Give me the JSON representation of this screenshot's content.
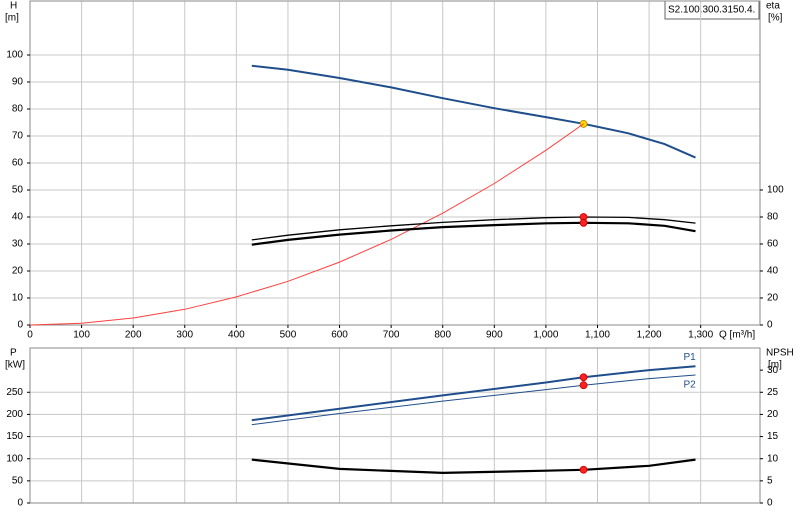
{
  "model_label": "S2.100.300.3150.4.",
  "chart_data": [
    {
      "type": "line",
      "y_label": "H",
      "y_unit": "[m]",
      "y2_label": "eta",
      "y2_unit": "[%]",
      "x_label": "Q [m³/h]",
      "xlim": [
        0,
        1415
      ],
      "ylim": [
        0,
        120
      ],
      "y2lim": [
        0,
        240
      ],
      "xticks": [
        0,
        100,
        200,
        300,
        400,
        500,
        600,
        700,
        800,
        900,
        {
          "value": 1000,
          "label": "1,000"
        },
        {
          "value": 1100,
          "label": "1,100"
        },
        {
          "value": 1200,
          "label": "1,200"
        },
        {
          "value": 1300,
          "label": "1,300"
        }
      ],
      "yticks": [
        0,
        10,
        20,
        30,
        40,
        50,
        60,
        70,
        80,
        90,
        100
      ],
      "y2ticks": [
        0,
        20,
        40,
        60,
        80,
        100
      ],
      "grid": true,
      "operating_x": 1073,
      "series": [
        {
          "color": "#1f4e8c",
          "line_width": 2,
          "axis": "y",
          "marker_color": "#ffd700",
          "x": [
            430,
            500,
            600,
            700,
            800,
            900,
            1000,
            1073,
            1160,
            1230,
            1290
          ],
          "values": [
            96,
            94.5,
            91.5,
            88,
            84,
            80.3,
            77,
            74.5,
            71,
            67,
            62
          ]
        },
        {
          "color": "#ff4040",
          "line_width": 1,
          "axis": "y",
          "x": [
            0,
            100,
            200,
            300,
            400,
            500,
            600,
            700,
            800,
            900,
            1000,
            1073
          ],
          "values": [
            0,
            0.65,
            2.6,
            5.8,
            10.4,
            16.2,
            23.3,
            31.7,
            41.4,
            52.4,
            64.7,
            74.5
          ]
        },
        {
          "color": "#000000",
          "line_width": 1.3,
          "axis": "y2",
          "marker_color": "#ff2020",
          "x": [
            430,
            500,
            600,
            700,
            800,
            900,
            1000,
            1073,
            1160,
            1230,
            1290
          ],
          "values": [
            63,
            66.5,
            70.5,
            73.5,
            76,
            78,
            79.5,
            80,
            79.7,
            78,
            75.5
          ]
        },
        {
          "color": "#000000",
          "line_width": 2.2,
          "axis": "y2",
          "marker_color": "#ff2020",
          "x": [
            430,
            500,
            600,
            700,
            800,
            900,
            1000,
            1073,
            1160,
            1230,
            1290
          ],
          "values": [
            59.5,
            63,
            67,
            70,
            72.5,
            74,
            75.3,
            75.7,
            75.3,
            73.5,
            69.5
          ]
        }
      ]
    },
    {
      "type": "line",
      "y_label": "P",
      "y_unit": "[kW]",
      "y2_label": "NPSH",
      "y2_unit": "[m]",
      "xlim": [
        0,
        1415
      ],
      "ylim": [
        0,
        350
      ],
      "y2lim": [
        0,
        35
      ],
      "yticks": [
        0,
        50,
        100,
        150,
        200,
        250
      ],
      "y2ticks": [
        0,
        5,
        10,
        15,
        20,
        25,
        30
      ],
      "grid": true,
      "operating_x": 1073,
      "series": [
        {
          "name": "P1",
          "color": "#1f4e8c",
          "line_width": 2,
          "axis": "y",
          "marker_color": "#ff2020",
          "x": [
            430,
            600,
            800,
            1000,
            1073,
            1200,
            1290
          ],
          "values": [
            187,
            213,
            243,
            272,
            284,
            300,
            309
          ]
        },
        {
          "name": "P2",
          "color": "#1f4e8c",
          "line_width": 1,
          "axis": "y",
          "marker_color": "#ff2020",
          "x": [
            430,
            600,
            800,
            1000,
            1073,
            1200,
            1290
          ],
          "values": [
            177,
            202,
            230,
            256,
            266,
            281,
            289
          ]
        },
        {
          "color": "#000000",
          "line_width": 2.2,
          "axis": "y2",
          "marker_color": "#ff2020",
          "x": [
            430,
            600,
            800,
            1000,
            1073,
            1200,
            1290
          ],
          "values": [
            9.8,
            7.7,
            6.8,
            7.3,
            7.5,
            8.4,
            9.8
          ]
        }
      ]
    }
  ]
}
